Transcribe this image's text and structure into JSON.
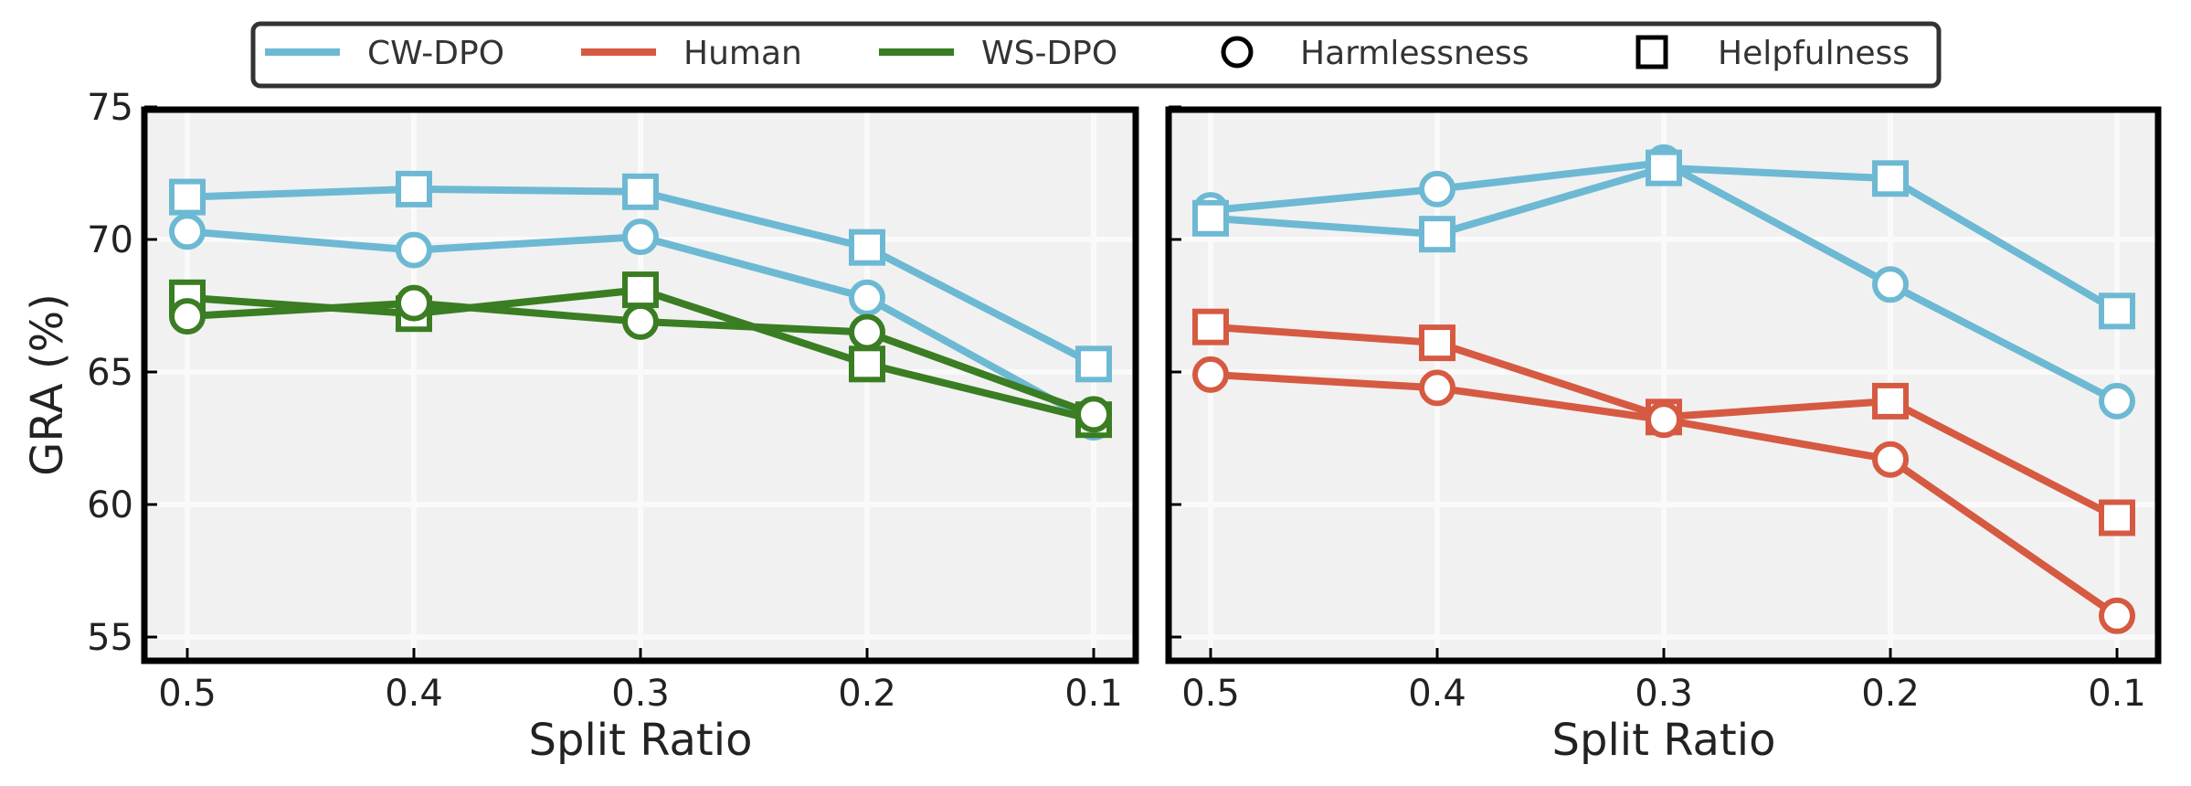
{
  "chart_data": [
    {
      "type": "line",
      "panel": "left",
      "title": "",
      "xlabel": "Split Ratio",
      "ylabel": "GRA (%)",
      "x": [
        0.5,
        0.4,
        0.3,
        0.2,
        0.1
      ],
      "x_tick_labels": [
        "0.5",
        "0.4",
        "0.3",
        "0.2",
        "0.1"
      ],
      "x_inverted": true,
      "ylim": [
        54,
        75
      ],
      "y_ticks": [
        55,
        60,
        65,
        70,
        75
      ],
      "y_tick_labels": [
        "55",
        "60",
        "65",
        "70",
        "75"
      ],
      "grid": true,
      "series": [
        {
          "name": "CW-DPO Helpfulness",
          "method": "CW-DPO",
          "metric": "Helpfulness",
          "marker": "square",
          "color": "#6db9d3",
          "values": [
            71.6,
            71.9,
            71.8,
            69.7,
            65.3
          ]
        },
        {
          "name": "CW-DPO Harmlessness",
          "method": "CW-DPO",
          "metric": "Harmlessness",
          "marker": "circle",
          "color": "#6db9d3",
          "values": [
            70.3,
            69.6,
            70.1,
            67.8,
            63.1
          ]
        },
        {
          "name": "WS-DPO Helpfulness",
          "method": "WS-DPO",
          "metric": "Helpfulness",
          "marker": "square",
          "color": "#3a7d22",
          "values": [
            67.8,
            67.2,
            68.1,
            65.3,
            63.2
          ]
        },
        {
          "name": "WS-DPO Harmlessness",
          "method": "WS-DPO",
          "metric": "Harmlessness",
          "marker": "circle",
          "color": "#3a7d22",
          "values": [
            67.1,
            67.6,
            66.9,
            66.5,
            63.4
          ]
        }
      ]
    },
    {
      "type": "line",
      "panel": "right",
      "title": "",
      "xlabel": "Split Ratio",
      "ylabel": "",
      "x": [
        0.5,
        0.4,
        0.3,
        0.2,
        0.1
      ],
      "x_tick_labels": [
        "0.5",
        "0.4",
        "0.3",
        "0.2",
        "0.1"
      ],
      "x_inverted": true,
      "ylim": [
        54,
        75
      ],
      "y_ticks": [
        55,
        60,
        65,
        70,
        75
      ],
      "y_tick_labels": [],
      "grid": true,
      "series": [
        {
          "name": "CW-DPO Harmlessness",
          "method": "CW-DPO",
          "metric": "Harmlessness",
          "marker": "circle",
          "color": "#6db9d3",
          "values": [
            71.1,
            71.9,
            72.9,
            68.3,
            63.9
          ]
        },
        {
          "name": "CW-DPO Helpfulness",
          "method": "CW-DPO",
          "metric": "Helpfulness",
          "marker": "square",
          "color": "#6db9d3",
          "values": [
            70.8,
            70.2,
            72.7,
            72.3,
            67.3
          ]
        },
        {
          "name": "Human Helpfulness",
          "method": "Human",
          "metric": "Helpfulness",
          "marker": "square",
          "color": "#d65a42",
          "values": [
            66.7,
            66.1,
            63.3,
            63.9,
            59.5
          ]
        },
        {
          "name": "Human Harmlessness",
          "method": "Human",
          "metric": "Harmlessness",
          "marker": "circle",
          "color": "#d65a42",
          "values": [
            64.9,
            64.4,
            63.2,
            61.7,
            55.8
          ]
        }
      ]
    }
  ],
  "legend": {
    "placement": "top-center",
    "entries": [
      {
        "label": "CW-DPO",
        "kind": "line",
        "color": "#6db9d3"
      },
      {
        "label": "Human",
        "kind": "line",
        "color": "#d65a42"
      },
      {
        "label": "WS-DPO",
        "kind": "line",
        "color": "#3a7d22"
      },
      {
        "label": "Harmlessness",
        "kind": "marker",
        "marker": "circle",
        "color": "#000000"
      },
      {
        "label": "Helpfulness",
        "kind": "marker",
        "marker": "square",
        "color": "#000000"
      }
    ]
  },
  "colors": {
    "plot_background": "#f1f1f1",
    "grid": "#fafafa",
    "frame": "#000000"
  }
}
